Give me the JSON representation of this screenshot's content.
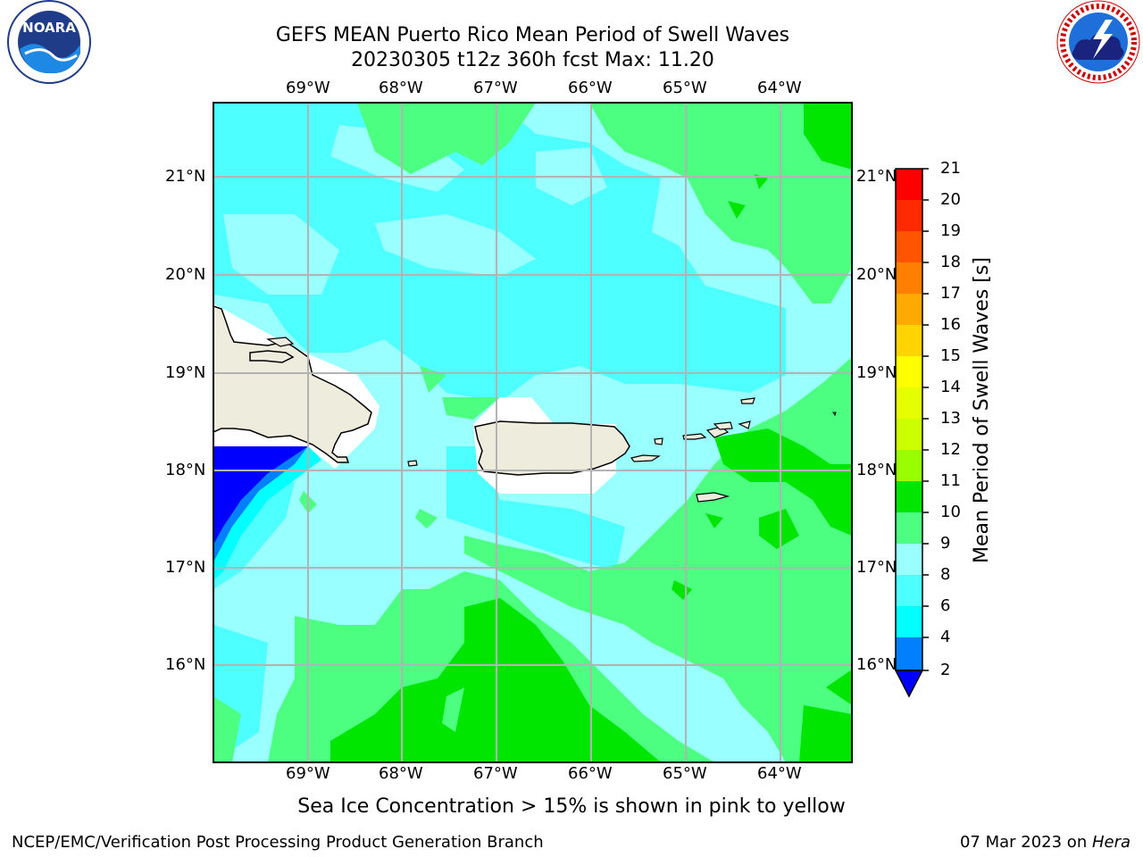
{
  "header": {
    "title_line1": "GEFS MEAN Puerto Rico Mean Period of Swell Waves",
    "title_line2": "20230305 t12z 360h fcst   Max: 11.20"
  },
  "logos": {
    "left": {
      "name": "NOARA",
      "ring_text": "NATIONAL OCEANIC AND ATMOSPHERIC ADMINISTRATION · U.S. DEPARTMENT OF COMMERCE"
    },
    "right": {
      "ring_text": "NATIONAL WEATHER SERVICE"
    }
  },
  "map": {
    "lon_labels": [
      "69°W",
      "68°W",
      "67°W",
      "66°W",
      "65°W",
      "64°W"
    ],
    "lat_labels": [
      "21°N",
      "20°N",
      "19°N",
      "18°N",
      "17°N",
      "16°N"
    ],
    "colors": {
      "light_cyan": "#99ffff",
      "mid_cyan": "#4dffff",
      "light_green": "#4dff80",
      "green": "#00e600",
      "land": "#eeecdc",
      "blue": "#0000ff",
      "grid": "#b3b3b3"
    }
  },
  "colorbar": {
    "label": "Mean Period of Swell Waves [s]",
    "ticks": [
      "21",
      "20",
      "19",
      "18",
      "17",
      "16",
      "15",
      "14",
      "13",
      "12",
      "11",
      "10",
      "9",
      "8",
      "6",
      "4",
      "2"
    ],
    "colors_top_to_bottom": [
      "#ff0000",
      "#ff2a00",
      "#ff5500",
      "#ff7f00",
      "#ffaa00",
      "#ffd400",
      "#ffff00",
      "#e6ff00",
      "#ccff00",
      "#99ff00",
      "#4dff00",
      "#00e600",
      "#4dff80",
      "#99ffff",
      "#4dffff",
      "#00ffff",
      "#0080ff",
      "#0000ff"
    ]
  },
  "subtitle": "Sea Ice Concentration > 15% is shown in pink to yellow",
  "footer": {
    "left": "NCEP/EMC/Verification Post Processing Product Generation Branch",
    "right_prefix": "07 Mar 2023 on ",
    "right_machine": "Hera"
  }
}
